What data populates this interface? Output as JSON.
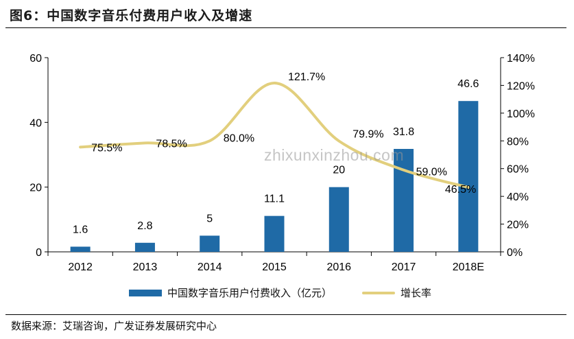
{
  "header": {
    "title": "图6：中国数字音乐付费用户收入及增速"
  },
  "footer": {
    "source": "数据来源：艾瑞咨询，广发证券发展研究中心"
  },
  "watermark": "zhixunxinzhou.com",
  "colors": {
    "bar": "#1f6aa6",
    "line": "#e2cf7d",
    "axis": "#000000"
  },
  "chart_data": {
    "type": "bar",
    "categories": [
      "2012",
      "2013",
      "2014",
      "2015",
      "2016",
      "2017",
      "2018E"
    ],
    "series": [
      {
        "name": "中国数字音乐用户付费收入（亿元）",
        "type": "bar",
        "axis": "left",
        "values": [
          1.6,
          2.8,
          5,
          11.1,
          20,
          31.8,
          46.6
        ],
        "labels": [
          "1.6",
          "2.8",
          "5",
          "11.1",
          "20",
          "31.8",
          "46.6"
        ]
      },
      {
        "name": "增长率",
        "type": "line",
        "axis": "right",
        "values": [
          75.5,
          78.5,
          80.0,
          121.7,
          79.9,
          59.0,
          46.5
        ],
        "labels": [
          "75.5%",
          "78.5%",
          "80.0%",
          "121.7%",
          "79.9%",
          "59.0%",
          "46.5%"
        ]
      }
    ],
    "y_left": {
      "min": 0,
      "max": 60,
      "ticks": [
        0,
        20,
        40,
        60
      ],
      "tick_labels": [
        "0",
        "20",
        "40",
        "60"
      ]
    },
    "y_right": {
      "min": 0,
      "max": 140,
      "ticks": [
        0,
        20,
        40,
        60,
        80,
        100,
        120,
        140
      ],
      "tick_labels": [
        "0%",
        "20%",
        "40%",
        "60%",
        "80%",
        "100%",
        "120%",
        "140%"
      ]
    },
    "grid": false,
    "legend_position": "bottom"
  }
}
